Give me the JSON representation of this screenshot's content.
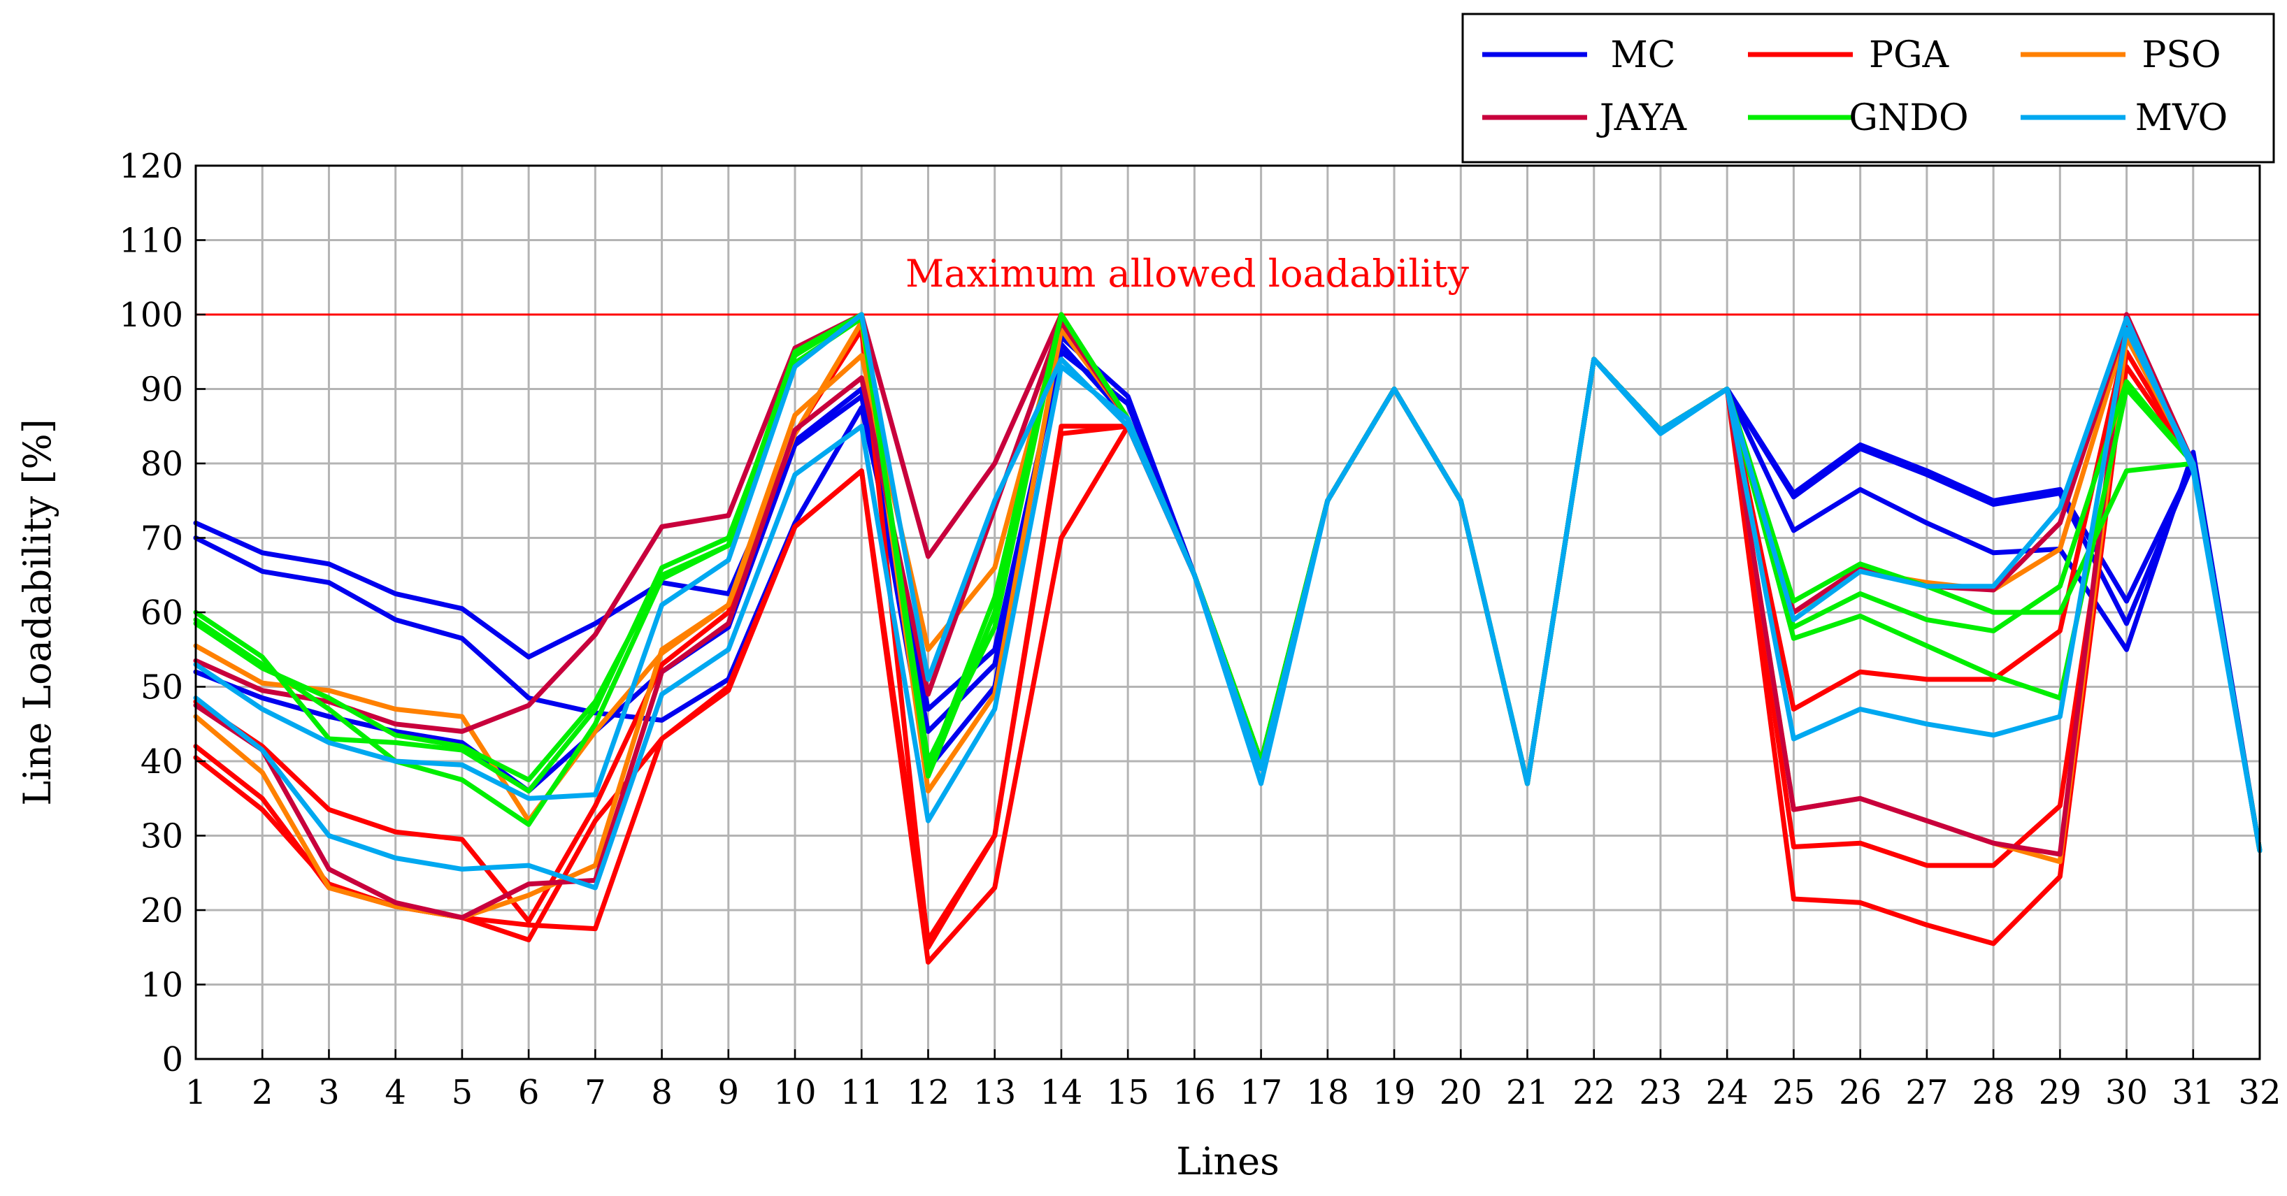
{
  "chart_data": {
    "type": "line",
    "title": "",
    "xlabel": "Lines",
    "ylabel": "Line Loadability [%]",
    "x": [
      1,
      2,
      3,
      4,
      5,
      6,
      7,
      8,
      9,
      10,
      11,
      12,
      13,
      14,
      15,
      16,
      17,
      18,
      19,
      20,
      21,
      22,
      23,
      24,
      25,
      26,
      27,
      28,
      29,
      30,
      31,
      32
    ],
    "xlim": [
      1,
      32
    ],
    "ylim": [
      0,
      120
    ],
    "yticks": [
      0,
      10,
      20,
      30,
      40,
      50,
      60,
      70,
      80,
      90,
      100,
      110,
      120
    ],
    "grid": true,
    "legend_position": "top-right (above plot)",
    "reference_line": {
      "y": 100,
      "label": "Maximum allowed loadability",
      "color": "#ff0000"
    },
    "colors": {
      "MC": "#0000ee",
      "PGA": "#ff0000",
      "PSO": "#ff8000",
      "JAYA": "#c8003c",
      "GNDO": "#00ee00",
      "MVO": "#00a8f0"
    },
    "legend": [
      "MC",
      "PGA",
      "PSO",
      "JAYA",
      "GNDO",
      "MVO"
    ],
    "series": [
      {
        "name": "MC",
        "values": [
          72,
          68,
          66.5,
          62.5,
          60.5,
          54,
          58.5,
          64,
          62.5,
          83,
          90,
          39,
          50,
          97,
          89,
          65,
          40,
          75,
          90,
          75,
          37,
          94,
          84.5,
          90,
          76,
          82.5,
          79,
          75,
          76.5,
          61.5,
          80,
          28
        ]
      },
      {
        "name": "MC",
        "values": [
          70,
          65.5,
          64,
          59,
          56.5,
          48.5,
          46.5,
          45.5,
          51,
          72,
          87.5,
          47,
          55,
          95,
          88,
          65,
          40,
          75,
          90,
          75,
          37,
          94,
          84.5,
          90,
          71,
          76.5,
          72,
          68,
          68.5,
          55,
          81.5,
          28
        ]
      },
      {
        "name": "MC",
        "values": [
          52,
          48.5,
          46,
          44,
          42.5,
          36,
          44,
          52,
          58,
          82.5,
          89,
          44,
          53,
          96,
          86,
          65,
          40,
          75,
          90,
          75,
          37,
          94,
          84.5,
          90,
          75.5,
          82,
          78.5,
          74.5,
          76,
          58.5,
          80,
          28
        ]
      },
      {
        "name": "PGA",
        "values": [
          42,
          35,
          23,
          20.5,
          19,
          18,
          17.5,
          43,
          49.5,
          71.5,
          79,
          13,
          23,
          70,
          85,
          65,
          40,
          75,
          90,
          75,
          37,
          94,
          84.5,
          90,
          21.5,
          21,
          18,
          15.5,
          24.5,
          95,
          80,
          28
        ]
      },
      {
        "name": "PGA",
        "values": [
          40.5,
          33.5,
          23.5,
          20.5,
          19,
          16,
          32,
          43,
          50,
          71.5,
          79,
          16,
          30,
          84,
          85,
          65,
          40,
          75,
          90,
          75,
          37,
          94,
          84.5,
          90,
          28.5,
          29,
          26,
          26,
          34,
          93,
          80,
          28
        ]
      },
      {
        "name": "PGA",
        "values": [
          48,
          42,
          33.5,
          30.5,
          29.5,
          18.5,
          34,
          53,
          60,
          84,
          98,
          15,
          30,
          85,
          85,
          65,
          40,
          75,
          90,
          75,
          37,
          94,
          84.5,
          90,
          47,
          52,
          51,
          51,
          57.5,
          97,
          80,
          28
        ]
      },
      {
        "name": "PSO",
        "values": [
          55.5,
          50.5,
          49.5,
          47,
          46,
          32,
          44,
          54.5,
          61,
          86.5,
          94.5,
          55,
          66,
          99,
          86,
          65,
          40,
          75,
          90,
          75,
          37,
          94,
          84.5,
          90,
          60,
          65.5,
          64,
          63,
          68.5,
          98,
          80,
          28
        ]
      },
      {
        "name": "PSO",
        "values": [
          46,
          38.5,
          23,
          20.5,
          19,
          22,
          26,
          55,
          61,
          84,
          99,
          36,
          49,
          98,
          86,
          65,
          40,
          75,
          90,
          75,
          37,
          94,
          84.5,
          90,
          33.5,
          35,
          32,
          29,
          26.5,
          97,
          80,
          28
        ]
      },
      {
        "name": "JAYA",
        "values": [
          47.5,
          41.5,
          25.5,
          21,
          19,
          23.5,
          24,
          52,
          58.5,
          84.5,
          91.5,
          49,
          74,
          99,
          86,
          65,
          40,
          75,
          90,
          75,
          37,
          94,
          84.5,
          90,
          33.5,
          35,
          32,
          29,
          27.5,
          100,
          80,
          28
        ]
      },
      {
        "name": "JAYA",
        "values": [
          53.5,
          49.5,
          48,
          45,
          44,
          47.5,
          57,
          71.5,
          73,
          95.5,
          100,
          67.5,
          80,
          100,
          86,
          65,
          40,
          75,
          90,
          75,
          37,
          94,
          84.5,
          90,
          60,
          66,
          63.5,
          63,
          72,
          99,
          80,
          28
        ]
      },
      {
        "name": "GNDO",
        "values": [
          60,
          54,
          43,
          42.5,
          41.5,
          36,
          47,
          66,
          70,
          93.5,
          99.5,
          40,
          58,
          100,
          86,
          65,
          40,
          75,
          90,
          75,
          37,
          94,
          84.5,
          90,
          61.5,
          66.5,
          63.5,
          60,
          60,
          79,
          80,
          28
        ]
      },
      {
        "name": "GNDO",
        "values": [
          58.5,
          52.5,
          48.5,
          43.5,
          42,
          37.5,
          48,
          65,
          69,
          94.5,
          100,
          38,
          60,
          100,
          86,
          65,
          40,
          75,
          90,
          75,
          37,
          94,
          84.5,
          90,
          58,
          62.5,
          59,
          57.5,
          63.5,
          91,
          80,
          28
        ]
      },
      {
        "name": "GNDO",
        "values": [
          59,
          53,
          47,
          40,
          37.5,
          31.5,
          45,
          64.5,
          69,
          95,
          100,
          39,
          62,
          100,
          86,
          65,
          40,
          75,
          90,
          75,
          37,
          94,
          84.5,
          90,
          56.5,
          59.5,
          55.5,
          51.5,
          48.5,
          90,
          80,
          28
        ]
      },
      {
        "name": "MVO",
        "values": [
          48.5,
          41.5,
          30,
          27,
          25.5,
          26,
          23,
          49,
          55,
          78.5,
          85,
          32,
          47,
          93,
          86,
          65,
          39,
          75,
          90,
          75,
          37,
          94,
          84.5,
          90,
          43,
          47,
          45,
          43.5,
          46,
          98,
          80,
          28
        ]
      },
      {
        "name": "MVO",
        "values": [
          53,
          47,
          42.5,
          40,
          39.5,
          35,
          35.5,
          61,
          67,
          93,
          100,
          51,
          75,
          94,
          85,
          65,
          37,
          75,
          90,
          75,
          37,
          94,
          84,
          90,
          59,
          65.5,
          63.5,
          63.5,
          74,
          99.5,
          79,
          28
        ]
      }
    ]
  }
}
